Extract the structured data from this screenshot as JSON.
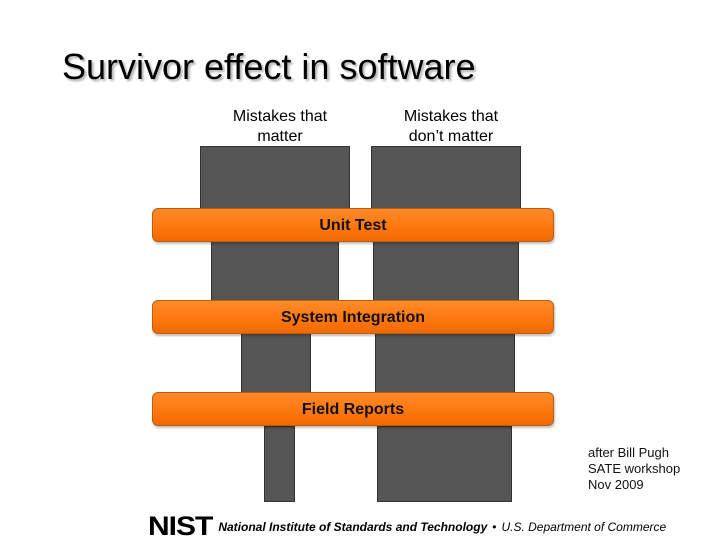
{
  "slide": {
    "title": "Survivor effect in software",
    "columns": [
      {
        "label": "Mistakes that\nmatter"
      },
      {
        "label": "Mistakes that\ndon’t matter"
      }
    ],
    "stages": [
      {
        "label": "Unit Test"
      },
      {
        "label": "System Integration"
      },
      {
        "label": "Field Reports"
      }
    ],
    "credit": "after Bill Pugh\nSATE workshop\nNov 2009"
  },
  "footer": {
    "logo_text": "NIST",
    "institution": "National Institute of Standards and Technology",
    "separator": "•",
    "department": "U.S. Department of Commerce"
  },
  "colors": {
    "bar": "#555555",
    "band": "#ff7a12"
  }
}
